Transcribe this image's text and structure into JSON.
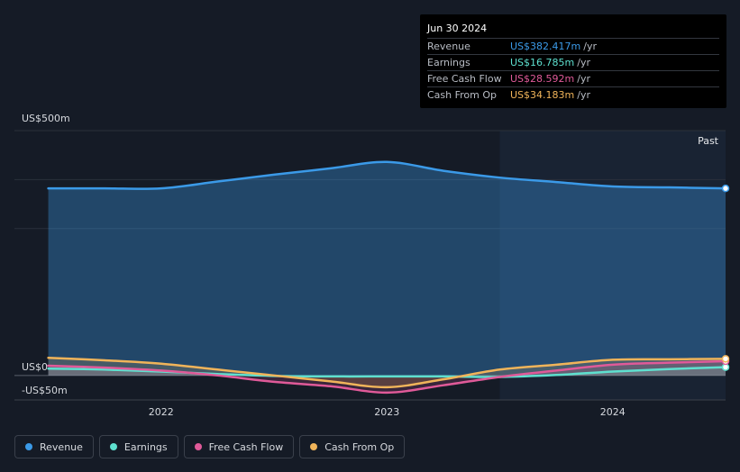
{
  "tooltip": {
    "date": "Jun 30 2024",
    "rows": [
      {
        "label": "Revenue",
        "value": "US$382.417m",
        "unit": "/yr",
        "color": "#3b9ae8"
      },
      {
        "label": "Earnings",
        "value": "US$16.785m",
        "unit": "/yr",
        "color": "#5ee0cf"
      },
      {
        "label": "Free Cash Flow",
        "value": "US$28.592m",
        "unit": "/yr",
        "color": "#e05a99"
      },
      {
        "label": "Cash From Op",
        "value": "US$34.183m",
        "unit": "/yr",
        "color": "#f0b45a"
      }
    ]
  },
  "legend": [
    {
      "label": "Revenue",
      "color": "#3b9ae8"
    },
    {
      "label": "Earnings",
      "color": "#5ee0cf"
    },
    {
      "label": "Free Cash Flow",
      "color": "#e05a99"
    },
    {
      "label": "Cash From Op",
      "color": "#f0b45a"
    }
  ],
  "chart_data": {
    "type": "area",
    "ylim": [
      -50,
      500
    ],
    "y_tick_labels": [
      {
        "value": 500,
        "label": "US$500m"
      },
      {
        "value": 0,
        "label": "US$0"
      },
      {
        "value": -50,
        "label": "-US$50m"
      }
    ],
    "x_ticks": [
      {
        "value": 2022,
        "label": "2022"
      },
      {
        "value": 2023,
        "label": "2023"
      },
      {
        "value": 2024,
        "label": "2024"
      }
    ],
    "xlim": [
      2021.35,
      2024.5
    ],
    "past_label": "Past",
    "past_from": 2023.5,
    "series": [
      {
        "name": "Revenue",
        "color": "#3b9ae8",
        "x": [
          2021.5,
          2021.75,
          2022.0,
          2022.25,
          2022.5,
          2022.75,
          2023.0,
          2023.25,
          2023.5,
          2023.75,
          2024.0,
          2024.25,
          2024.5
        ],
        "y": [
          382,
          382,
          382,
          396,
          410,
          423,
          436,
          418,
          404,
          395,
          386,
          384,
          382
        ]
      },
      {
        "name": "Earnings",
        "color": "#5ee0cf",
        "x": [
          2021.5,
          2021.75,
          2022.0,
          2022.25,
          2022.5,
          2022.75,
          2023.0,
          2023.25,
          2023.5,
          2023.75,
          2024.0,
          2024.25,
          2024.5
        ],
        "y": [
          14,
          12,
          8,
          3,
          -1,
          -2,
          -2,
          -2,
          -3,
          1,
          8,
          13,
          17
        ]
      },
      {
        "name": "Free Cash Flow",
        "color": "#e05a99",
        "x": [
          2021.5,
          2021.75,
          2022.0,
          2022.25,
          2022.5,
          2022.75,
          2023.0,
          2023.25,
          2023.5,
          2023.75,
          2024.0,
          2024.25,
          2024.5
        ],
        "y": [
          20,
          16,
          10,
          0,
          -13,
          -22,
          -35,
          -20,
          -3,
          10,
          22,
          26,
          29
        ]
      },
      {
        "name": "Cash From Op",
        "color": "#f0b45a",
        "x": [
          2021.5,
          2021.75,
          2022.0,
          2022.25,
          2022.5,
          2022.75,
          2023.0,
          2023.25,
          2023.5,
          2023.75,
          2024.0,
          2024.25,
          2024.5
        ],
        "y": [
          36,
          31,
          24,
          12,
          0,
          -12,
          -24,
          -8,
          12,
          22,
          32,
          33,
          34
        ]
      }
    ]
  }
}
